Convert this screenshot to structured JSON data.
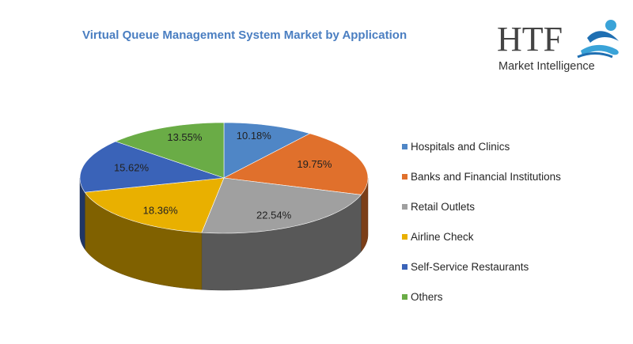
{
  "chart_data": {
    "type": "pie",
    "title": "Virtual Queue Management System Market by Application",
    "style": "3d",
    "legend_position": "right",
    "categories": [
      "Hospitals and Clinics",
      "Banks and Financial Institutions",
      "Retail Outlets",
      "Airline Check",
      "Self-Service Restaurants",
      "Others"
    ],
    "values": [
      10.18,
      19.75,
      22.54,
      18.36,
      15.62,
      13.55
    ],
    "labels": [
      "10.18%",
      "19.75%",
      "22.54%",
      "18.36%",
      "15.62%",
      "13.55%"
    ],
    "colors": [
      "#4f86c6",
      "#e0702c",
      "#a0a0a0",
      "#e9b000",
      "#3a63b8",
      "#6aac46"
    ]
  },
  "logo": {
    "brand": "HTF",
    "tagline": "Market Intelligence"
  }
}
